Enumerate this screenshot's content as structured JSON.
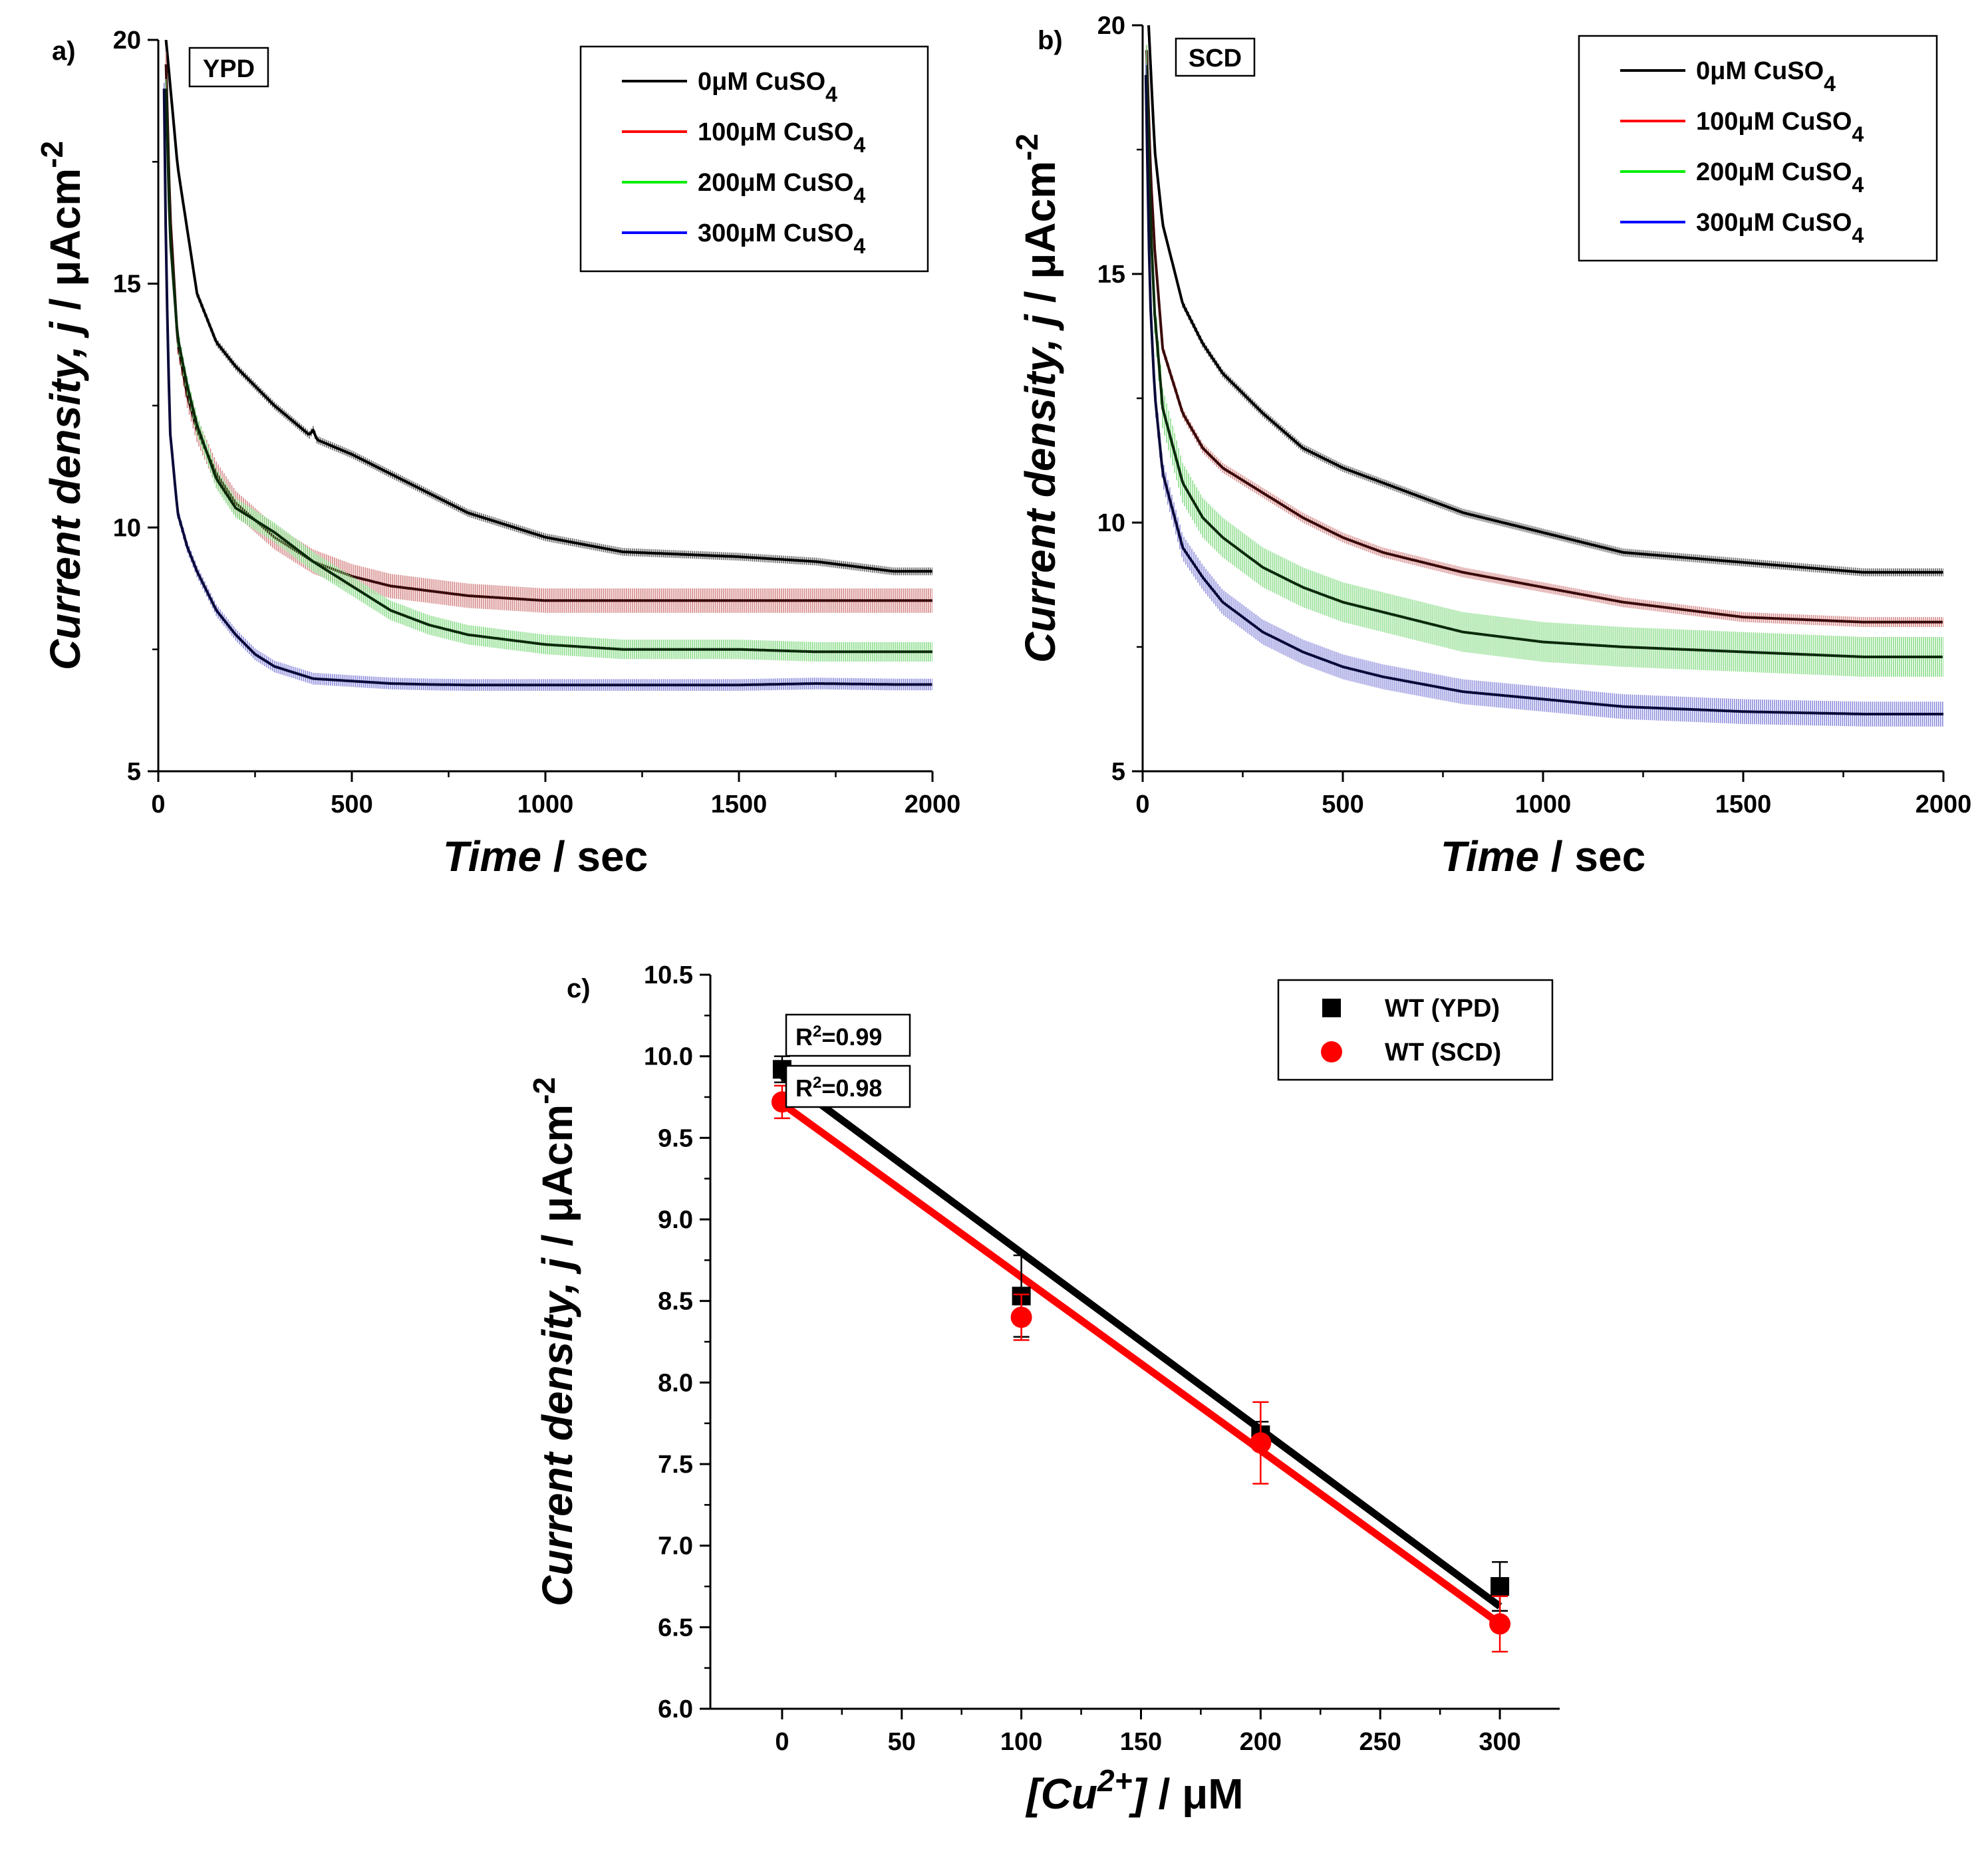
{
  "chart_data": [
    {
      "type": "line",
      "panel": "a)",
      "annotation": "YPD",
      "xlabel": {
        "italic": "Time",
        "rest": " / sec"
      },
      "ylabel": {
        "italic": "Current density, j",
        "rest": " / μAcm",
        "sup": "-2"
      },
      "xlim": [
        0,
        2000
      ],
      "ylim": [
        5,
        20
      ],
      "xticks": [
        0,
        500,
        1000,
        1500,
        2000
      ],
      "yticks": [
        5,
        10,
        15,
        20
      ],
      "legend": [
        "0μM CuSO4",
        "100μM CuSO4",
        "200μM CuSO4",
        "300μM CuSO4"
      ],
      "legend_position": "top-right",
      "series": [
        {
          "name": "0μM CuSO4",
          "color": "#000000",
          "band_color": "#555555",
          "x": [
            20,
            50,
            100,
            150,
            200,
            300,
            390,
            400,
            410,
            500,
            600,
            700,
            800,
            1000,
            1200,
            1500,
            1700,
            1900,
            2000
          ],
          "y": [
            20,
            17.4,
            14.8,
            13.8,
            13.3,
            12.5,
            11.9,
            12.0,
            11.8,
            11.5,
            11.1,
            10.7,
            10.3,
            9.8,
            9.5,
            9.4,
            9.3,
            9.1,
            9.1
          ],
          "err": 0.08
        },
        {
          "name": "100μM CuSO4",
          "color": "#3a0a0a",
          "band_color": "#d07a7a",
          "x": [
            20,
            30,
            50,
            75,
            100,
            150,
            200,
            300,
            400,
            500,
            600,
            700,
            800,
            1000,
            1200,
            1500,
            1700,
            1900,
            2000
          ],
          "y": [
            19.5,
            16.5,
            13.8,
            12.7,
            12.0,
            11.1,
            10.5,
            9.8,
            9.3,
            9.0,
            8.8,
            8.7,
            8.6,
            8.5,
            8.5,
            8.5,
            8.5,
            8.5,
            8.5
          ],
          "err": 0.25
        },
        {
          "name": "200μM CuSO4",
          "color": "#0a2a0a",
          "band_color": "#7cd87c",
          "x": [
            20,
            30,
            50,
            75,
            100,
            150,
            200,
            300,
            400,
            500,
            600,
            700,
            800,
            1000,
            1200,
            1500,
            1700,
            1900,
            2000
          ],
          "y": [
            19.0,
            16.0,
            13.9,
            12.9,
            12.1,
            11.0,
            10.4,
            9.9,
            9.3,
            8.8,
            8.3,
            8.0,
            7.8,
            7.6,
            7.5,
            7.5,
            7.45,
            7.45,
            7.45
          ],
          "err": 0.2
        },
        {
          "name": "300μM CuSO4",
          "color": "#0a0a3a",
          "band_color": "#7e7ed8",
          "x": [
            15,
            20,
            30,
            50,
            75,
            100,
            150,
            200,
            250,
            300,
            400,
            500,
            600,
            700,
            800,
            1000,
            1200,
            1500,
            1700,
            1900,
            2000
          ],
          "y": [
            19.0,
            15.5,
            12.0,
            10.3,
            9.6,
            9.1,
            8.3,
            7.8,
            7.4,
            7.15,
            6.9,
            6.85,
            6.8,
            6.78,
            6.77,
            6.77,
            6.77,
            6.77,
            6.8,
            6.78,
            6.78
          ],
          "err": 0.12
        }
      ]
    },
    {
      "type": "line",
      "panel": "b)",
      "annotation": "SCD",
      "xlabel": {
        "italic": "Time",
        "rest": " / sec"
      },
      "ylabel": {
        "italic": "Current density, j",
        "rest": " / μAcm",
        "sup": "-2"
      },
      "xlim": [
        0,
        2000
      ],
      "ylim": [
        5,
        20
      ],
      "xticks": [
        0,
        500,
        1000,
        1500,
        2000
      ],
      "yticks": [
        5,
        10,
        15,
        20
      ],
      "legend": [
        "0μM CuSO4",
        "100μM CuSO4",
        "200μM CuSO4",
        "300μM CuSO4"
      ],
      "legend_position": "top-right",
      "series": [
        {
          "name": "0μM CuSO4",
          "color": "#000000",
          "band_color": "#555555",
          "x": [
            15,
            30,
            50,
            100,
            150,
            200,
            300,
            400,
            500,
            600,
            800,
            1000,
            1200,
            1500,
            1800,
            2000
          ],
          "y": [
            20,
            17.5,
            16.0,
            14.4,
            13.6,
            13.0,
            12.2,
            11.5,
            11.1,
            10.8,
            10.2,
            9.8,
            9.4,
            9.2,
            9.0,
            9.0
          ],
          "err": 0.08
        },
        {
          "name": "100μM CuSO4",
          "color": "#3a0a0a",
          "band_color": "#d07a7a",
          "x": [
            10,
            20,
            30,
            50,
            100,
            150,
            200,
            300,
            400,
            500,
            600,
            800,
            1000,
            1200,
            1500,
            1800,
            2000
          ],
          "y": [
            19.5,
            17.0,
            15.5,
            13.5,
            12.2,
            11.5,
            11.1,
            10.6,
            10.1,
            9.7,
            9.4,
            9.0,
            8.7,
            8.4,
            8.1,
            8.0,
            8.0
          ],
          "err": 0.1
        },
        {
          "name": "200μM CuSO4",
          "color": "#0a2a0a",
          "band_color": "#7cd87c",
          "x": [
            10,
            20,
            30,
            50,
            100,
            150,
            200,
            300,
            400,
            500,
            600,
            800,
            1000,
            1200,
            1500,
            1800,
            2000
          ],
          "y": [
            19.2,
            16.0,
            14.2,
            12.3,
            10.8,
            10.1,
            9.7,
            9.1,
            8.7,
            8.4,
            8.2,
            7.8,
            7.6,
            7.5,
            7.4,
            7.3,
            7.3
          ],
          "err": 0.4
        },
        {
          "name": "300μM CuSO4",
          "color": "#0a0a3a",
          "band_color": "#7e7ed8",
          "x": [
            8,
            15,
            20,
            30,
            50,
            100,
            150,
            200,
            300,
            400,
            500,
            600,
            800,
            1000,
            1200,
            1500,
            1800,
            2000
          ],
          "y": [
            19.0,
            15.8,
            14.3,
            12.6,
            11.0,
            9.5,
            8.9,
            8.4,
            7.8,
            7.4,
            7.1,
            6.9,
            6.6,
            6.45,
            6.3,
            6.2,
            6.15,
            6.15
          ],
          "err": 0.25
        }
      ]
    },
    {
      "type": "scatter",
      "panel": "c)",
      "xlabel": {
        "italic": "[Cu",
        "sup": "2+",
        "italic2": "]",
        "rest": " / μM"
      },
      "ylabel": {
        "italic": "Current density, j",
        "rest": " / μAcm",
        "sup": "-2"
      },
      "xlim": [
        -30,
        325
      ],
      "ylim": [
        6.0,
        10.5
      ],
      "xticks": [
        0,
        50,
        100,
        150,
        200,
        250,
        300
      ],
      "yticks": [
        6.0,
        6.5,
        7.0,
        7.5,
        8.0,
        8.5,
        9.0,
        9.5,
        10.0,
        10.5
      ],
      "legend_position": "top-right",
      "annotations": [
        {
          "prefix": "R",
          "sup": "2",
          "suffix": "=0.99"
        },
        {
          "prefix": "R",
          "sup": "2",
          "suffix": "=0.98"
        }
      ],
      "series": [
        {
          "name": "WT (YPD)",
          "marker": "square",
          "color": "#000000",
          "x": [
            0,
            100,
            200,
            300
          ],
          "y": [
            9.92,
            8.53,
            7.68,
            6.75
          ],
          "err": [
            0.08,
            0.25,
            0.08,
            0.15
          ],
          "fit": {
            "slope": -0.01084,
            "intercept": 9.88,
            "r2": 0.99
          }
        },
        {
          "name": "WT (SCD)",
          "marker": "circle",
          "color": "#ff0000",
          "x": [
            0,
            100,
            200,
            300
          ],
          "y": [
            9.72,
            8.4,
            7.63,
            6.52
          ],
          "err": [
            0.1,
            0.14,
            0.25,
            0.17
          ],
          "fit": {
            "slope": -0.01063,
            "intercept": 9.71,
            "r2": 0.98
          }
        }
      ]
    }
  ]
}
